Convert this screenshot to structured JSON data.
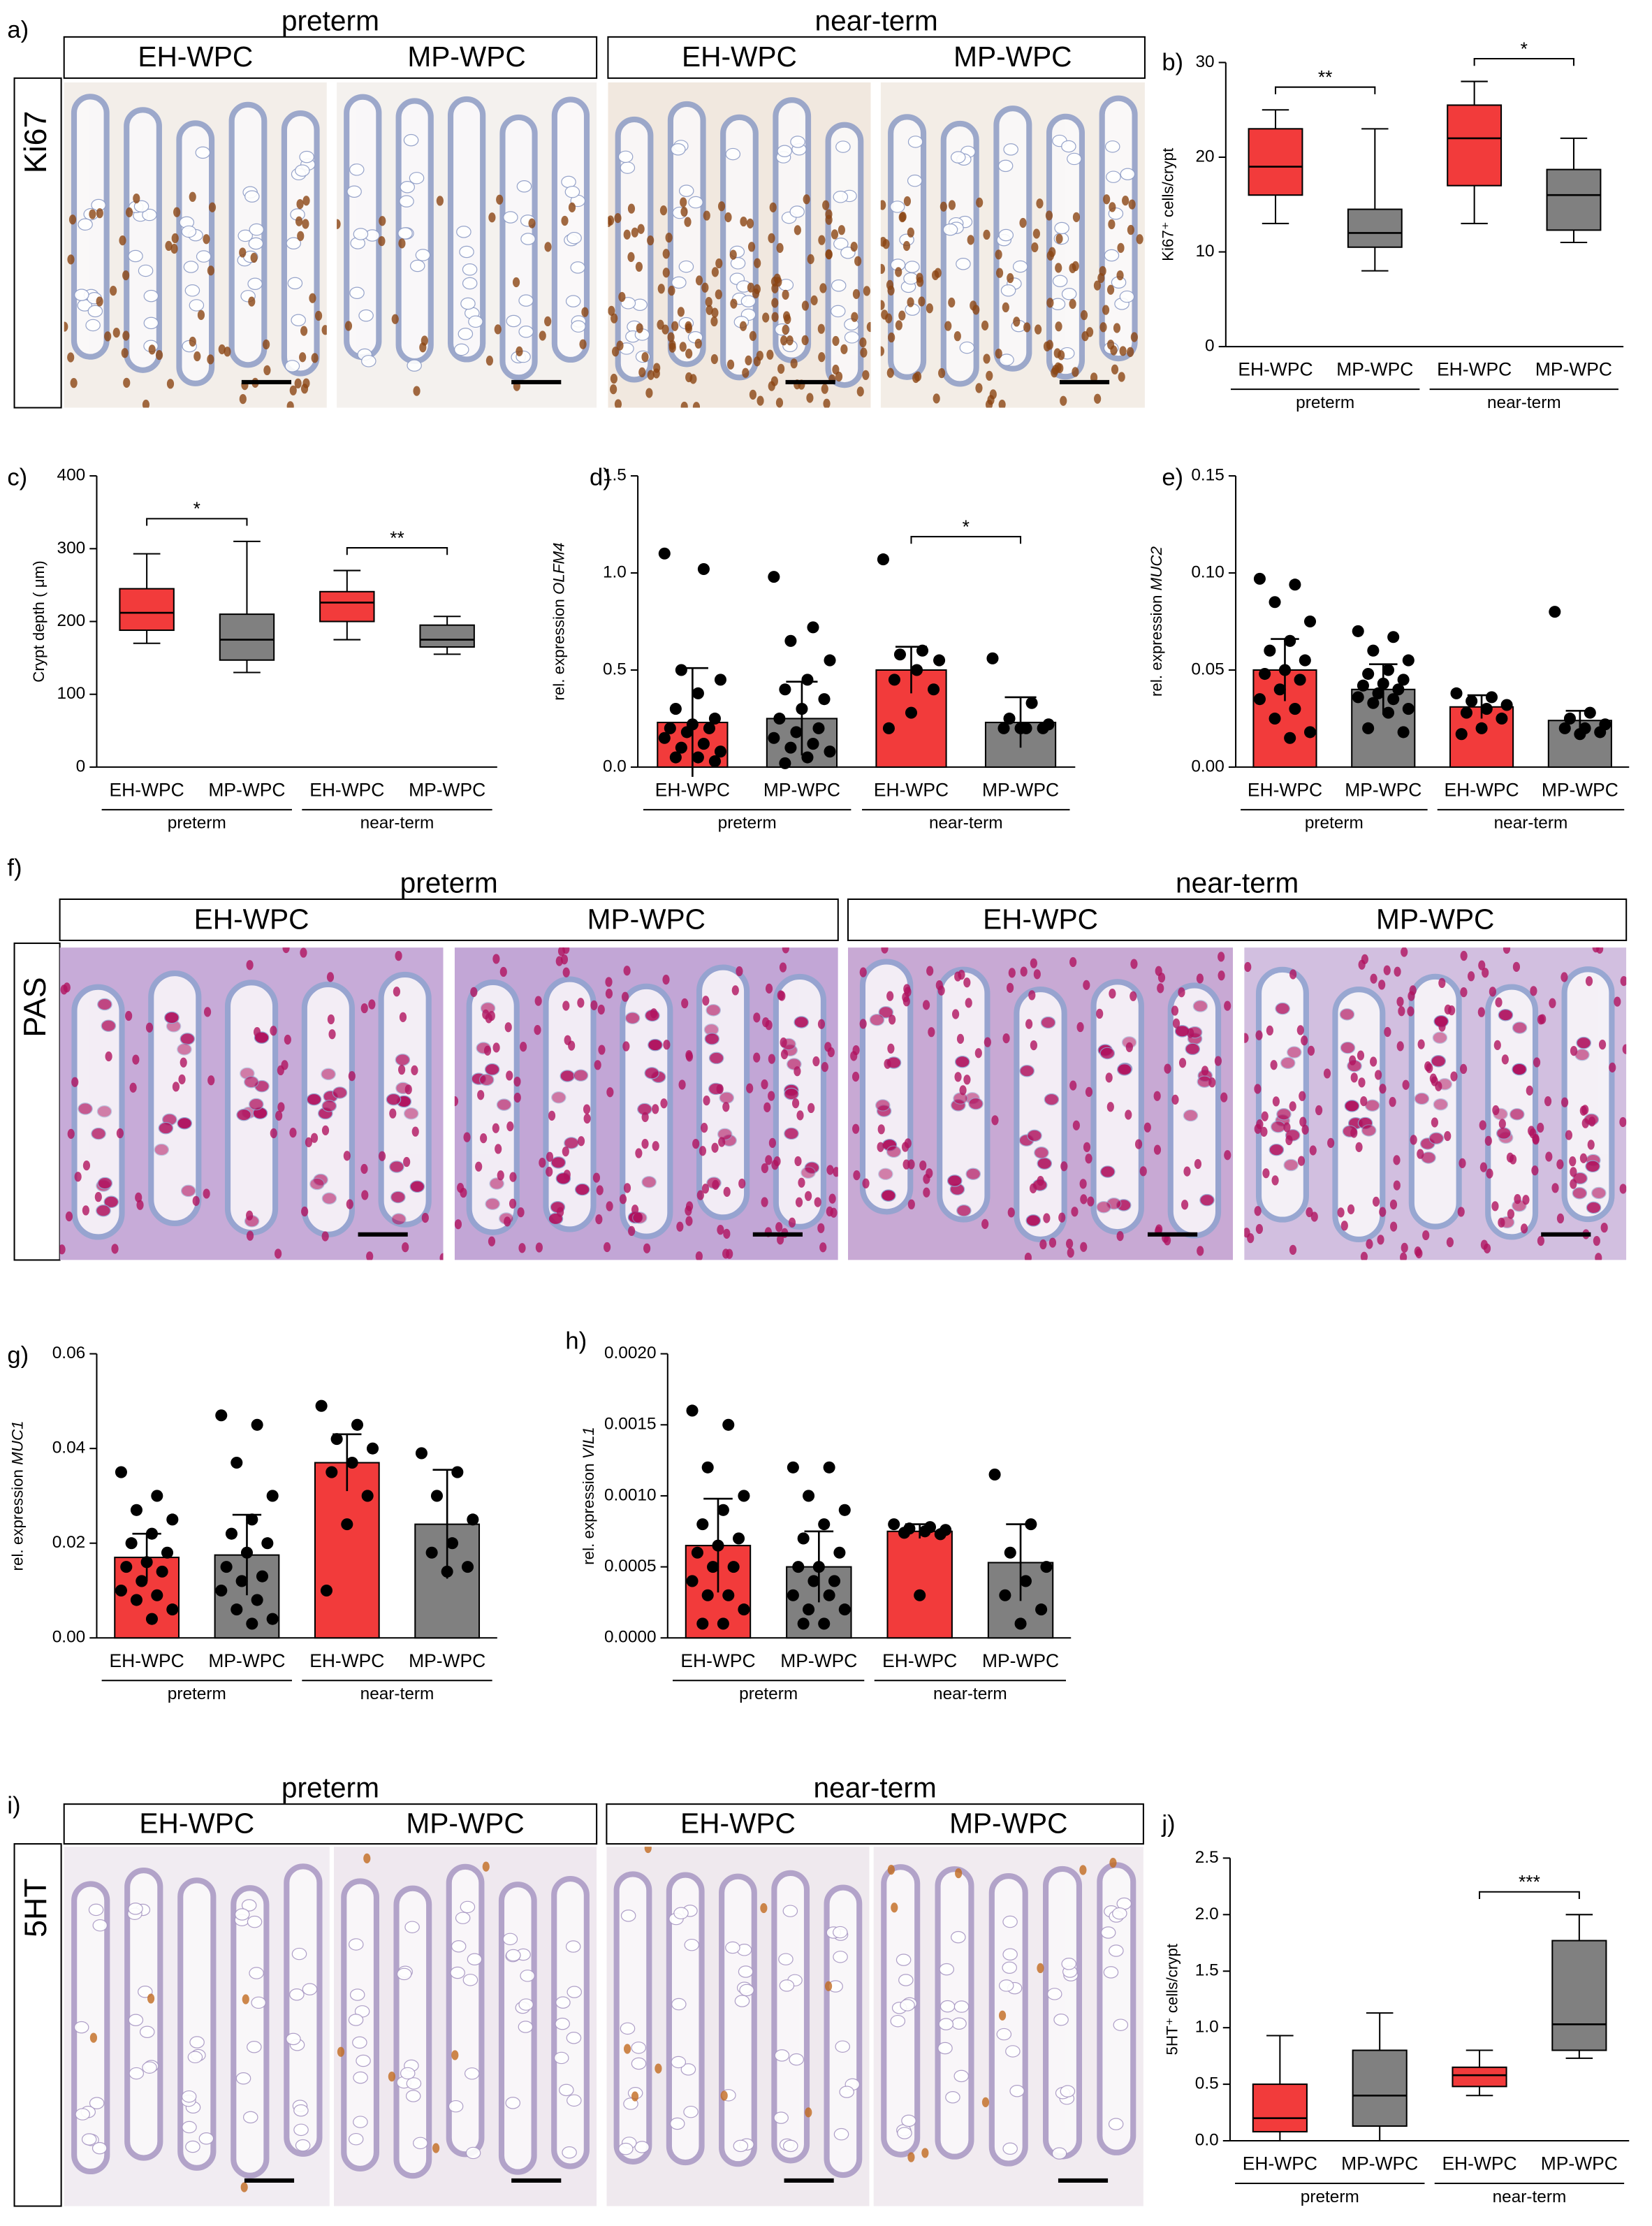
{
  "panels": [
    {
      "letter": "a)",
      "stain": "Ki67",
      "groups": [
        {
          "label": "preterm",
          "items": [
            "EH-WPC",
            "MP-WPC"
          ]
        },
        {
          "label": "near-term",
          "items": [
            "EH-WPC",
            "MP-WPC"
          ]
        }
      ]
    },
    {
      "letter": "f)",
      "stain": "PAS",
      "groups": [
        {
          "label": "preterm",
          "items": [
            "EH-WPC",
            "MP-WPC"
          ]
        },
        {
          "label": "near-term",
          "items": [
            "EH-WPC",
            "MP-WPC"
          ]
        }
      ]
    },
    {
      "letter": "i)",
      "stain": "5HT",
      "groups": [
        {
          "label": "preterm",
          "items": [
            "EH-WPC",
            "MP-WPC"
          ]
        },
        {
          "label": "near-term",
          "items": [
            "EH-WPC",
            "MP-WPC"
          ]
        }
      ]
    }
  ],
  "chart_data": [
    {
      "type": "box",
      "letter": "b)",
      "ylabel": "Ki67⁺ cells/crypt",
      "categories": [
        "EH-WPC",
        "MP-WPC",
        "EH-WPC",
        "MP-WPC"
      ],
      "groups": [
        "preterm",
        "near-term"
      ],
      "colors": [
        "#f23b3b",
        "#808080",
        "#f23b3b",
        "#808080"
      ],
      "boxes": [
        {
          "min": 13,
          "q1": 16,
          "median": 19,
          "q3": 23,
          "max": 25
        },
        {
          "min": 8,
          "q1": 10.5,
          "median": 12,
          "q3": 14.5,
          "max": 23
        },
        {
          "min": 13,
          "q1": 17,
          "median": 22,
          "q3": 25.5,
          "max": 28
        },
        {
          "min": 11,
          "q1": 12.3,
          "median": 16,
          "q3": 18.7,
          "max": 22
        }
      ],
      "significance": [
        "**",
        "*"
      ],
      "ylim": [
        0,
        30
      ],
      "yticks": [
        0,
        10,
        20,
        30
      ]
    },
    {
      "type": "box",
      "letter": "c)",
      "ylabel": "Crypt depth ( μm)",
      "categories": [
        "EH-WPC",
        "MP-WPC",
        "EH-WPC",
        "MP-WPC"
      ],
      "groups": [
        "preterm",
        "near-term"
      ],
      "colors": [
        "#f23b3b",
        "#808080",
        "#f23b3b",
        "#808080"
      ],
      "boxes": [
        {
          "min": 170,
          "q1": 188,
          "median": 212,
          "q3": 245,
          "max": 293
        },
        {
          "min": 130,
          "q1": 147,
          "median": 175,
          "q3": 210,
          "max": 310
        },
        {
          "min": 175,
          "q1": 200,
          "median": 226,
          "q3": 241,
          "max": 270
        },
        {
          "min": 155,
          "q1": 165,
          "median": 175,
          "q3": 195,
          "max": 207
        }
      ],
      "significance": [
        "*",
        "**"
      ],
      "ylim": [
        0,
        400
      ],
      "yticks": [
        0,
        100,
        200,
        300,
        400
      ]
    },
    {
      "type": "bar",
      "letter": "d)",
      "ylabel": "rel. expression",
      "gene": "OLFM4",
      "categories": [
        "EH-WPC",
        "MP-WPC",
        "EH-WPC",
        "MP-WPC"
      ],
      "groups": [
        "preterm",
        "near-term"
      ],
      "colors": [
        "#f23b3b",
        "#808080",
        "#f23b3b",
        "#808080"
      ],
      "values": [
        0.23,
        0.25,
        0.5,
        0.23
      ],
      "errors": [
        0.28,
        0.19,
        0.12,
        0.13
      ],
      "points": [
        [
          1.1,
          1.02,
          0.5,
          0.45,
          0.38,
          0.3,
          0.25,
          0.22,
          0.2,
          0.2,
          0.18,
          0.15,
          0.12,
          0.1,
          0.08,
          0.05,
          0.05,
          0.03
        ],
        [
          0.98,
          0.72,
          0.65,
          0.55,
          0.45,
          0.4,
          0.35,
          0.3,
          0.25,
          0.2,
          0.18,
          0.15,
          0.12,
          0.1,
          0.08,
          0.05,
          0.02
        ],
        [
          1.07,
          0.6,
          0.58,
          0.55,
          0.5,
          0.45,
          0.4,
          0.28,
          0.2
        ],
        [
          0.56,
          0.33,
          0.25,
          0.22,
          0.2,
          0.2,
          0.2,
          0.2
        ]
      ],
      "significance": [
        null,
        "*"
      ],
      "ylim": [
        0,
        1.5
      ],
      "yticks": [
        {
          "value": 0,
          "label": "0.0"
        },
        0.5,
        {
          "value": 1,
          "label": "1.0"
        },
        1.5
      ]
    },
    {
      "type": "bar",
      "letter": "e)",
      "ylabel": "rel. expression",
      "gene": "MUC2",
      "categories": [
        "EH-WPC",
        "MP-WPC",
        "EH-WPC",
        "MP-WPC"
      ],
      "groups": [
        "preterm",
        "near-term"
      ],
      "colors": [
        "#f23b3b",
        "#808080",
        "#f23b3b",
        "#808080"
      ],
      "values": [
        0.05,
        0.04,
        0.031,
        0.024
      ],
      "errors": [
        0.016,
        0.013,
        0.006,
        0.005
      ],
      "points": [
        [
          0.097,
          0.094,
          0.085,
          0.075,
          0.065,
          0.06,
          0.055,
          0.05,
          0.048,
          0.045,
          0.04,
          0.035,
          0.03,
          0.025,
          0.018,
          0.015
        ],
        [
          0.07,
          0.067,
          0.06,
          0.055,
          0.05,
          0.048,
          0.045,
          0.043,
          0.042,
          0.04,
          0.038,
          0.036,
          0.035,
          0.033,
          0.03,
          0.028,
          0.02,
          0.018
        ],
        [
          0.038,
          0.036,
          0.034,
          0.032,
          0.03,
          0.028,
          0.025,
          0.02,
          0.017
        ],
        [
          0.08,
          0.028,
          0.025,
          0.022,
          0.02,
          0.02,
          0.018,
          0.017
        ]
      ],
      "ylim": [
        0,
        0.15
      ],
      "yticks": [
        {
          "value": 0,
          "label": "0.00"
        },
        0.05,
        {
          "value": 0.1,
          "label": "0.10"
        },
        0.15
      ]
    },
    {
      "type": "bar",
      "letter": "g)",
      "ylabel": "rel. expression",
      "gene": "MUC1",
      "categories": [
        "EH-WPC",
        "MP-WPC",
        "EH-WPC",
        "MP-WPC"
      ],
      "groups": [
        "preterm",
        "near-term"
      ],
      "colors": [
        "#f23b3b",
        "#808080",
        "#f23b3b",
        "#808080"
      ],
      "values": [
        0.017,
        0.0175,
        0.037,
        0.024
      ],
      "errors": [
        0.005,
        0.0085,
        0.006,
        0.0115
      ],
      "points": [
        [
          0.035,
          0.03,
          0.027,
          0.025,
          0.022,
          0.02,
          0.018,
          0.016,
          0.015,
          0.014,
          0.012,
          0.01,
          0.009,
          0.008,
          0.006,
          0.004
        ],
        [
          0.047,
          0.045,
          0.037,
          0.03,
          0.025,
          0.022,
          0.02,
          0.018,
          0.015,
          0.013,
          0.012,
          0.01,
          0.008,
          0.006,
          0.004,
          0.003
        ],
        [
          0.049,
          0.045,
          0.042,
          0.04,
          0.037,
          0.035,
          0.03,
          0.024,
          0.01
        ],
        [
          0.039,
          0.035,
          0.03,
          0.025,
          0.02,
          0.018,
          0.015,
          0.014
        ]
      ],
      "ylim": [
        0,
        0.06
      ],
      "yticks": [
        {
          "value": 0,
          "label": "0.00"
        },
        0.02,
        0.04,
        0.06
      ]
    },
    {
      "type": "bar",
      "letter": "h)",
      "ylabel": "rel. expression",
      "gene": "VIL1",
      "categories": [
        "EH-WPC",
        "MP-WPC",
        "EH-WPC",
        "MP-WPC"
      ],
      "groups": [
        "preterm",
        "near-term"
      ],
      "colors": [
        "#f23b3b",
        "#808080",
        "#f23b3b",
        "#808080"
      ],
      "values": [
        0.00065,
        0.0005,
        0.00075,
        0.00053
      ],
      "errors": [
        0.00033,
        0.00025,
        5e-05,
        0.00027
      ],
      "points": [
        [
          0.0016,
          0.0015,
          0.0012,
          0.001,
          0.0009,
          0.0008,
          0.0007,
          0.00065,
          0.0006,
          0.0005,
          0.0005,
          0.0004,
          0.0003,
          0.0003,
          0.0002,
          0.0001,
          0.0001
        ],
        [
          0.0012,
          0.0012,
          0.001,
          0.0009,
          0.0008,
          0.0007,
          0.0006,
          0.0005,
          0.0005,
          0.0004,
          0.0004,
          0.0003,
          0.0003,
          0.0002,
          0.0002,
          0.0001,
          0.0001
        ],
        [
          0.0008,
          0.00078,
          0.00077,
          0.00076,
          0.00075,
          0.00074,
          0.00073,
          0.0003
        ],
        [
          0.00115,
          0.0008,
          0.0006,
          0.0005,
          0.0004,
          0.0003,
          0.0002,
          0.0001
        ]
      ],
      "ylim": [
        0,
        0.002
      ],
      "yticks": [
        {
          "value": 0,
          "label": "0.0000"
        },
        {
          "value": 0.0005,
          "label": "0.0005"
        },
        {
          "value": 0.001,
          "label": "0.0010"
        },
        {
          "value": 0.0015,
          "label": "0.0015"
        },
        {
          "value": 0.002,
          "label": "0.0020"
        }
      ]
    },
    {
      "type": "box",
      "letter": "j)",
      "ylabel": "5HT⁺ cells/crypt",
      "categories": [
        "EH-WPC",
        "MP-WPC",
        "EH-WPC",
        "MP-WPC"
      ],
      "groups": [
        "preterm",
        "near-term"
      ],
      "colors": [
        "#f23b3b",
        "#808080",
        "#f23b3b",
        "#808080"
      ],
      "boxes": [
        {
          "min": 0,
          "q1": 0.08,
          "median": 0.2,
          "q3": 0.5,
          "max": 0.93
        },
        {
          "min": 0,
          "q1": 0.13,
          "median": 0.4,
          "q3": 0.8,
          "max": 1.13
        },
        {
          "min": 0.4,
          "q1": 0.48,
          "median": 0.58,
          "q3": 0.65,
          "max": 0.8
        },
        {
          "min": 0.73,
          "q1": 0.8,
          "median": 1.03,
          "q3": 1.77,
          "max": 2
        }
      ],
      "significance": [
        null,
        "***"
      ],
      "ylim": [
        0,
        2.5
      ],
      "yticks": [
        {
          "value": 0,
          "label": "0.0"
        },
        0.5,
        {
          "value": 1,
          "label": "1.0"
        },
        1.5,
        {
          "value": 2,
          "label": "2.0"
        },
        2.5
      ]
    }
  ]
}
